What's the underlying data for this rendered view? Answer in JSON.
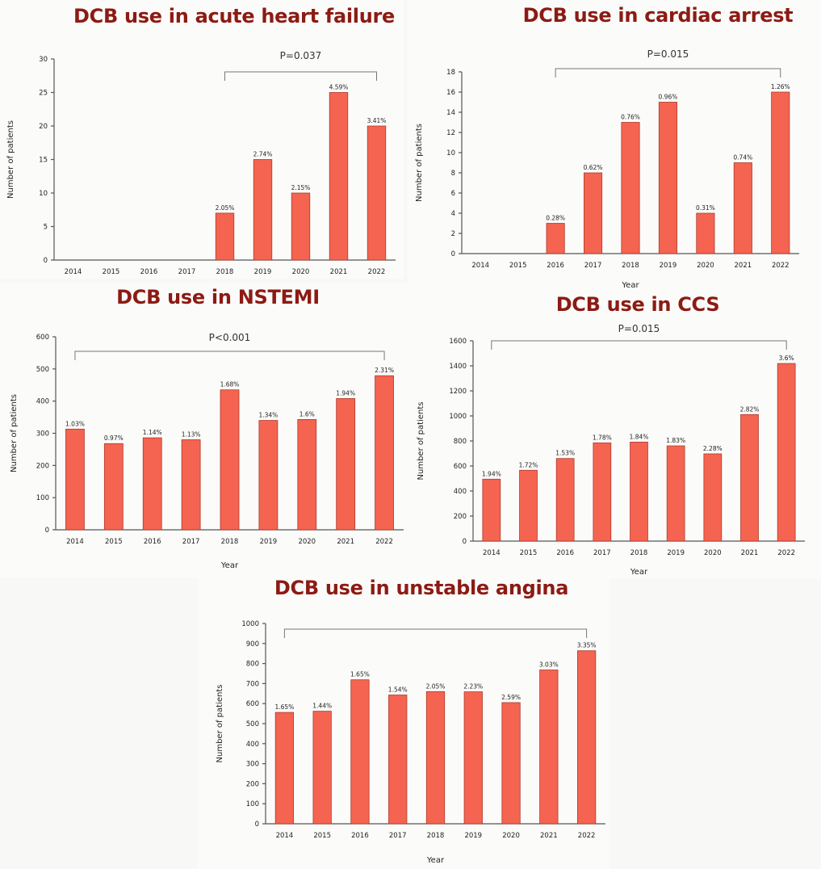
{
  "colors": {
    "bar": "#f46450",
    "bar_edge": "#b03a2c",
    "title": "#8c1b13"
  },
  "chart_data": [
    {
      "id": "ahf",
      "type": "bar",
      "title": "DCB use in acute heart failure",
      "xlabel": "",
      "ylabel": "Number of patients",
      "categories": [
        "2014",
        "2015",
        "2016",
        "2017",
        "2018",
        "2019",
        "2020",
        "2021",
        "2022"
      ],
      "values": [
        0,
        0,
        0,
        0,
        7,
        15,
        10,
        25,
        20
      ],
      "data_labels": [
        "",
        "",
        "",
        "",
        "2.05%",
        "2.74%",
        "2.15%",
        "4.59%",
        "3.41%"
      ],
      "ylim": [
        0,
        30
      ],
      "yticks": [
        0,
        5,
        10,
        15,
        20,
        25,
        30
      ],
      "bracket": {
        "from": "2018",
        "to": "2022",
        "label": "P=0.037"
      },
      "grid": false
    },
    {
      "id": "ca",
      "type": "bar",
      "title": "DCB use in cardiac arrest",
      "xlabel": "Year",
      "ylabel": "Number of patients",
      "categories": [
        "2014",
        "2015",
        "2016",
        "2017",
        "2018",
        "2019",
        "2020",
        "2021",
        "2022"
      ],
      "values": [
        0,
        0,
        3,
        8,
        13,
        15,
        4,
        9,
        16
      ],
      "data_labels": [
        "",
        "",
        "0.28%",
        "0.62%",
        "0.76%",
        "0.96%",
        "0.31%",
        "0.74%",
        "1.26%"
      ],
      "ylim": [
        0,
        18
      ],
      "yticks": [
        0,
        2,
        4,
        6,
        8,
        10,
        12,
        14,
        16,
        18
      ],
      "bracket": {
        "from": "2016",
        "to": "2022",
        "label": "P=0.015"
      },
      "grid": false
    },
    {
      "id": "nstemi",
      "type": "bar",
      "title": "DCB use in NSTEMI",
      "xlabel": "Year",
      "ylabel": "Number of patients",
      "categories": [
        "2014",
        "2015",
        "2016",
        "2017",
        "2018",
        "2019",
        "2020",
        "2021",
        "2022"
      ],
      "values": [
        313,
        268,
        286,
        280,
        435,
        340,
        343,
        408,
        479
      ],
      "data_labels": [
        "1.03%",
        "0.97%",
        "1.14%",
        "1.13%",
        "1.68%",
        "1.34%",
        "1.6%",
        "1.94%",
        "2.31%"
      ],
      "ylim": [
        0,
        600
      ],
      "yticks": [
        0,
        100,
        200,
        300,
        400,
        500,
        600
      ],
      "bracket": {
        "from": "2014",
        "to": "2022",
        "label": "P<0.001"
      },
      "grid": false
    },
    {
      "id": "ccs",
      "type": "bar",
      "title": "DCB use in CCS",
      "xlabel": "Year",
      "ylabel": "Number of patients",
      "categories": [
        "2014",
        "2015",
        "2016",
        "2017",
        "2018",
        "2019",
        "2020",
        "2021",
        "2022"
      ],
      "values": [
        495,
        566,
        660,
        785,
        791,
        761,
        697,
        1011,
        1419
      ],
      "data_labels": [
        "1.94%",
        "1.72%",
        "1.53%",
        "1.78%",
        "1.84%",
        "1.83%",
        "2.28%",
        "2.82%",
        "3.6%"
      ],
      "ylim": [
        0,
        1600
      ],
      "yticks": [
        0,
        200,
        400,
        600,
        800,
        1000,
        1200,
        1400,
        1600
      ],
      "bracket": {
        "from": "2014",
        "to": "2022",
        "label": "P=0.015"
      },
      "grid": false
    },
    {
      "id": "ua",
      "type": "bar",
      "title": "DCB use in unstable angina",
      "xlabel": "Year",
      "ylabel": "Number of patients",
      "categories": [
        "2014",
        "2015",
        "2016",
        "2017",
        "2018",
        "2019",
        "2020",
        "2021",
        "2022"
      ],
      "values": [
        556,
        562,
        719,
        643,
        660,
        659,
        605,
        768,
        864
      ],
      "data_labels": [
        "1.65%",
        "1.44%",
        "1.65%",
        "1.54%",
        "2.05%",
        "2.23%",
        "2.59%",
        "3.03%",
        "3.35%"
      ],
      "ylim": [
        0,
        1000
      ],
      "yticks": [
        0,
        100,
        200,
        300,
        400,
        500,
        600,
        700,
        800,
        900,
        1000
      ],
      "bracket": {
        "from": "2014",
        "to": "2022",
        "label": ""
      },
      "grid": false
    }
  ]
}
